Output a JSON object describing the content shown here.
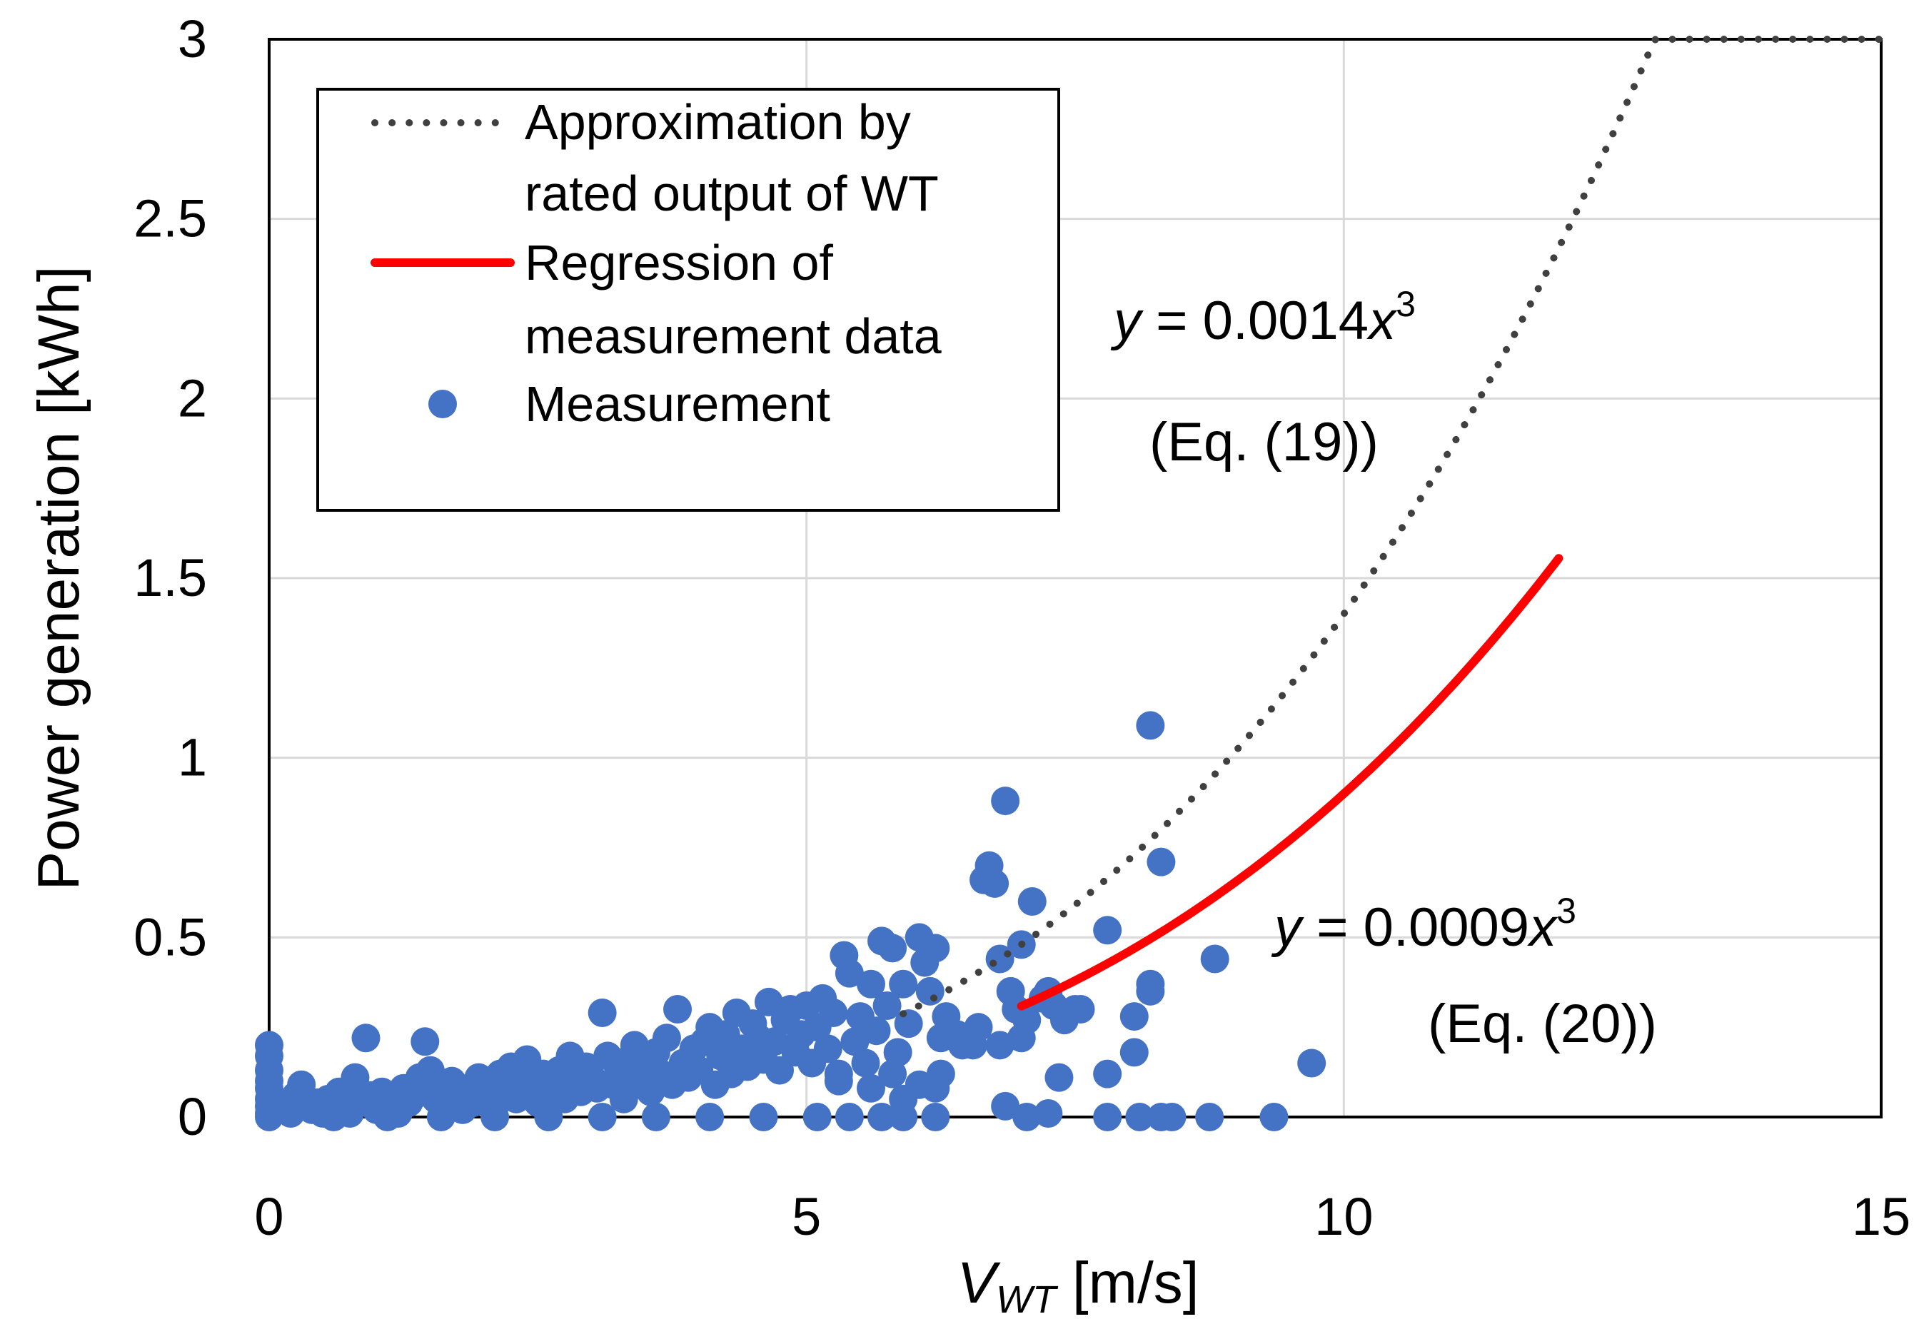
{
  "chart_data": {
    "type": "scatter",
    "xlabel": {
      "main": "V",
      "sub": "WT",
      "unit": " [m/s]"
    },
    "ylabel": "Power generation [kWh]",
    "xlim": [
      0,
      15
    ],
    "ylim": [
      0,
      3
    ],
    "x_ticks": [
      "0",
      "5",
      "10",
      "15"
    ],
    "y_ticks": [
      "0",
      "0.5",
      "1",
      "1.5",
      "2",
      "2.5",
      "3"
    ],
    "grid": true,
    "legend_position": "top-left",
    "colors": {
      "approximation": "#404040",
      "regression": "#ff0000",
      "measurement": "#4472c4"
    },
    "legend": [
      {
        "lines": [
          "Approximation by",
          "rated output of WT"
        ],
        "style": "dotted"
      },
      {
        "lines": [
          "Regression of",
          "measurement data"
        ],
        "style": "solid"
      },
      {
        "lines": [
          "Measurement"
        ],
        "style": "marker"
      }
    ],
    "series": [
      {
        "name": "Approximation by rated output of WT",
        "kind": "dotted-line",
        "equation": {
          "y": "y",
          "eq": " = 0.0014",
          "x": "x",
          "exp": "3",
          "ref": "(Eq. (19))"
        },
        "coefficient": 0.0014,
        "x_range": [
          5.9,
          15
        ],
        "cap": 3
      },
      {
        "name": "Regression of measurement data",
        "kind": "solid-line",
        "equation": {
          "y": "y",
          "eq": " = 0.0009",
          "x": "x",
          "exp": "3",
          "ref": "(Eq. (20))"
        },
        "coefficient": 0.0009,
        "x_range": [
          7.0,
          12.0
        ]
      },
      {
        "name": "Measurement",
        "kind": "scatter",
        "points": [
          [
            0,
            0.2
          ],
          [
            0,
            0.17
          ],
          [
            0,
            0.13
          ],
          [
            0,
            0.1
          ],
          [
            0,
            0.08
          ],
          [
            0,
            0.05
          ],
          [
            0,
            0.03
          ],
          [
            0,
            0.01
          ],
          [
            0,
            0
          ],
          [
            0.05,
            0.04
          ],
          [
            0.1,
            0.02
          ],
          [
            0.15,
            0.03
          ],
          [
            0.2,
            0.01
          ],
          [
            0.25,
            0.06
          ],
          [
            0.3,
            0.09
          ],
          [
            0.35,
            0.03
          ],
          [
            0.4,
            0.02
          ],
          [
            0.45,
            0.04
          ],
          [
            0.5,
            0.01
          ],
          [
            0.55,
            0.05
          ],
          [
            0.6,
            0.02
          ],
          [
            0.65,
            0.07
          ],
          [
            0.7,
            0.03
          ],
          [
            0.75,
            0.01
          ],
          [
            0.8,
            0.11
          ],
          [
            0.85,
            0.04
          ],
          [
            0.9,
            0.22
          ],
          [
            0.95,
            0.06
          ],
          [
            1.0,
            0.02
          ],
          [
            1.05,
            0.07
          ],
          [
            1.1,
            0.03
          ],
          [
            1.15,
            0.05
          ],
          [
            1.2,
            0.01
          ],
          [
            1.25,
            0.08
          ],
          [
            1.3,
            0.04
          ],
          [
            1.35,
            0.06
          ],
          [
            1.4,
            0.11
          ],
          [
            1.45,
            0.21
          ],
          [
            1.5,
            0.13
          ],
          [
            1.55,
            0.05
          ],
          [
            1.6,
            0.09
          ],
          [
            1.65,
            0.03
          ],
          [
            1.7,
            0.1
          ],
          [
            1.75,
            0.06
          ],
          [
            1.8,
            0.02
          ],
          [
            1.85,
            0.08
          ],
          [
            1.9,
            0.04
          ],
          [
            1.95,
            0.11
          ],
          [
            2.0,
            0.06
          ],
          [
            2.05,
            0.09
          ],
          [
            2.1,
            0.03
          ],
          [
            2.15,
            0.12
          ],
          [
            2.2,
            0.07
          ],
          [
            2.25,
            0.14
          ],
          [
            2.3,
            0.05
          ],
          [
            2.35,
            0.1
          ],
          [
            2.4,
            0.16
          ],
          [
            2.45,
            0.08
          ],
          [
            2.5,
            0.04
          ],
          [
            2.55,
            0.12
          ],
          [
            2.6,
            0.06
          ],
          [
            2.65,
            0.09
          ],
          [
            2.7,
            0.13
          ],
          [
            2.75,
            0.05
          ],
          [
            2.8,
            0.17
          ],
          [
            2.85,
            0.1
          ],
          [
            2.9,
            0.07
          ],
          [
            2.95,
            0.14
          ],
          [
            3.0,
            0.11
          ],
          [
            3.05,
            0.08
          ],
          [
            3.1,
            0.29
          ],
          [
            3.15,
            0.17
          ],
          [
            3.2,
            0.09
          ],
          [
            3.25,
            0.13
          ],
          [
            3.3,
            0.05
          ],
          [
            3.35,
            0.16
          ],
          [
            3.4,
            0.2
          ],
          [
            3.45,
            0.1
          ],
          [
            3.5,
            0.14
          ],
          [
            3.55,
            0.07
          ],
          [
            3.6,
            0.18
          ],
          [
            3.65,
            0.12
          ],
          [
            3.7,
            0.22
          ],
          [
            3.75,
            0.09
          ],
          [
            3.8,
            0.3
          ],
          [
            3.85,
            0.15
          ],
          [
            3.9,
            0.11
          ],
          [
            3.95,
            0.19
          ],
          [
            4.0,
            0.13
          ],
          [
            4.05,
            0.21
          ],
          [
            4.1,
            0.25
          ],
          [
            4.15,
            0.09
          ],
          [
            4.2,
            0.17
          ],
          [
            4.25,
            0.23
          ],
          [
            4.3,
            0.12
          ],
          [
            4.35,
            0.29
          ],
          [
            4.4,
            0.19
          ],
          [
            4.45,
            0.14
          ],
          [
            4.5,
            0.26
          ],
          [
            4.55,
            0.22
          ],
          [
            4.6,
            0.16
          ],
          [
            4.65,
            0.32
          ],
          [
            4.7,
            0.21
          ],
          [
            4.75,
            0.13
          ],
          [
            4.8,
            0.27
          ],
          [
            4.85,
            0.3
          ],
          [
            4.9,
            0.18
          ],
          [
            4.95,
            0.23
          ],
          [
            5.0,
            0.31
          ],
          [
            5.05,
            0.15
          ],
          [
            5.1,
            0.25
          ],
          [
            5.15,
            0.33
          ],
          [
            5.2,
            0.19
          ],
          [
            5.25,
            0.29
          ],
          [
            5.3,
            0.12
          ],
          [
            5.35,
            0.45
          ],
          [
            5.4,
            0.4
          ],
          [
            5.45,
            0.21
          ],
          [
            5.5,
            0.28
          ],
          [
            5.55,
            0.15
          ],
          [
            5.6,
            0.37
          ],
          [
            5.65,
            0.24
          ],
          [
            5.7,
            0.49
          ],
          [
            5.75,
            0.31
          ],
          [
            5.8,
            0.47
          ],
          [
            5.85,
            0.18
          ],
          [
            5.9,
            0.37
          ],
          [
            5.95,
            0.26
          ],
          [
            6.05,
            0.5
          ],
          [
            6.1,
            0.43
          ],
          [
            6.15,
            0.35
          ],
          [
            6.2,
            0.47
          ],
          [
            6.25,
            0.22
          ],
          [
            6.3,
            0.28
          ],
          [
            6.4,
            0.23
          ],
          [
            6.55,
            0.2
          ],
          [
            6.6,
            0.25
          ],
          [
            6.65,
            0.66
          ],
          [
            6.7,
            0.7
          ],
          [
            6.75,
            0.65
          ],
          [
            6.8,
            0.44
          ],
          [
            6.85,
            0.88
          ],
          [
            6.9,
            0.35
          ],
          [
            6.95,
            0.3
          ],
          [
            7.0,
            0.48
          ],
          [
            7.05,
            0.27
          ],
          [
            7.1,
            0.6
          ],
          [
            7.2,
            0.33
          ],
          [
            7.25,
            0.35
          ],
          [
            7.3,
            0.31
          ],
          [
            7.35,
            0.11
          ],
          [
            7.4,
            0.27
          ],
          [
            7.5,
            0.3
          ],
          [
            7.55,
            0.3
          ],
          [
            7.8,
            0.52
          ],
          [
            7.8,
            0.12
          ],
          [
            8.05,
            0.28
          ],
          [
            8.05,
            0.18
          ],
          [
            8.2,
            0.37
          ],
          [
            8.2,
            0.35
          ],
          [
            8.2,
            1.09
          ],
          [
            8.3,
            0.71
          ],
          [
            8.8,
            0.44
          ],
          [
            9.7,
            0.15
          ],
          [
            0.6,
            0.0
          ],
          [
            1.1,
            0.0
          ],
          [
            1.6,
            0.0
          ],
          [
            2.1,
            0.0
          ],
          [
            2.6,
            0.0
          ],
          [
            3.1,
            0.0
          ],
          [
            3.6,
            0.0
          ],
          [
            4.1,
            0.0
          ],
          [
            4.6,
            0.0
          ],
          [
            5.1,
            0.0
          ],
          [
            5.4,
            0.0
          ],
          [
            5.7,
            0.0
          ],
          [
            5.9,
            0.0
          ],
          [
            6.2,
            0.0
          ],
          [
            6.85,
            0.03
          ],
          [
            7.05,
            0.0
          ],
          [
            7.25,
            0.01
          ],
          [
            7.8,
            0.0
          ],
          [
            8.1,
            0.0
          ],
          [
            8.3,
            0.0
          ],
          [
            8.4,
            0.0
          ],
          [
            8.75,
            0.0
          ],
          [
            9.35,
            0.0
          ],
          [
            5.6,
            0.08
          ],
          [
            5.3,
            0.1
          ],
          [
            5.8,
            0.12
          ],
          [
            5.9,
            0.05
          ],
          [
            6.05,
            0.09
          ],
          [
            6.2,
            0.08
          ],
          [
            6.25,
            0.12
          ],
          [
            6.45,
            0.2
          ],
          [
            6.8,
            0.2
          ],
          [
            7.0,
            0.22
          ]
        ]
      }
    ]
  }
}
